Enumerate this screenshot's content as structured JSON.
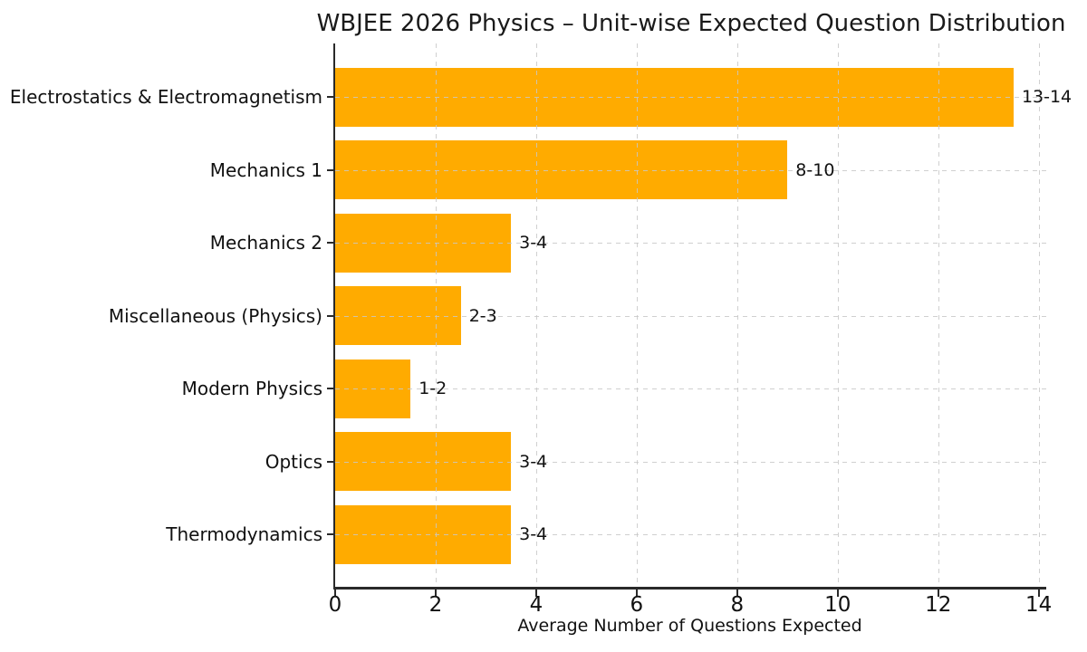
{
  "figure": {
    "background": "#ffffff"
  },
  "chart_data": {
    "type": "bar",
    "orientation": "horizontal",
    "title": "WBJEE 2026 Physics – Unit-wise Expected Question Distribution",
    "xlabel": "Average Number of Questions Expected",
    "ylabel": "",
    "categories": [
      "Electrostatics & Electromagnetism",
      "Mechanics 1",
      "Mechanics 2",
      "Miscellaneous (Physics)",
      "Modern Physics",
      "Optics",
      "Thermodynamics"
    ],
    "values": [
      13.5,
      9,
      3.5,
      2.5,
      1.5,
      3.5,
      3.5
    ],
    "bar_labels": [
      "13-14",
      "8-10",
      "3-4",
      "2-3",
      "1-2",
      "3-4",
      "3-4"
    ],
    "x_ticks": [
      0,
      2,
      4,
      6,
      8,
      10,
      12,
      14
    ],
    "xlim": [
      0,
      14.15
    ],
    "grid": true,
    "grid_style": "dashed",
    "legend": "none",
    "colors": {
      "bar": "#FFAB00",
      "grid": "#c8c8c8",
      "axis": "#2a2a2a",
      "text": "#111111"
    }
  }
}
